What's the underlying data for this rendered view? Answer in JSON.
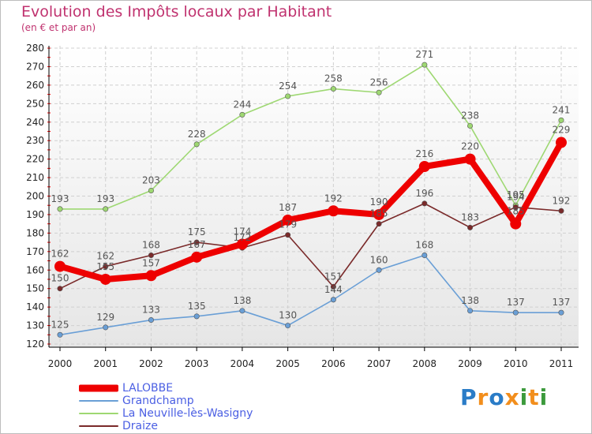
{
  "header": {
    "title": "Evolution des Impôts locaux par Habitant",
    "subtitle": "(en € et par an)"
  },
  "logo": {
    "text": "Proxiti",
    "letters": [
      "P",
      "r",
      "o",
      "x",
      "i",
      "t",
      "i"
    ],
    "colors": [
      "#2a7cc7",
      "#f28e1c",
      "#2a7cc7",
      "#f28e1c",
      "#3c9a3c",
      "#f28e1c",
      "#3c9a3c"
    ]
  },
  "colors": {
    "title": "#c0326f",
    "legend_text": "#4b5fe3",
    "grid": "#d0d0d0",
    "axis": "#000000",
    "tick_marks": "#ff0000"
  },
  "chart_data": {
    "type": "line",
    "title": "Evolution des Impôts locaux par Habitant",
    "subtitle": "(en € et par an)",
    "xlabel": "",
    "ylabel": "",
    "x": [
      "2000",
      "2001",
      "2002",
      "2003",
      "2004",
      "2005",
      "2006",
      "2007",
      "2008",
      "2009",
      "2010",
      "2011"
    ],
    "ylim": [
      120,
      280
    ],
    "yticks": [
      120,
      130,
      140,
      150,
      160,
      170,
      180,
      190,
      200,
      210,
      220,
      230,
      240,
      250,
      260,
      270,
      280
    ],
    "grid": true,
    "legend_position": "bottom-left",
    "series": [
      {
        "name": "LALOBBE",
        "color": "#ee0000",
        "width": 8,
        "marker": 7,
        "label_color": "#555555",
        "values": [
          162,
          155,
          157,
          167,
          174,
          187,
          192,
          190,
          216,
          220,
          185,
          229
        ],
        "labels": [
          "162",
          "155",
          "157",
          "167",
          "174",
          "187",
          "192",
          "190",
          "216",
          "220",
          "185",
          "229"
        ]
      },
      {
        "name": "Grandchamp",
        "color": "#6a9fd6",
        "width": 1.6,
        "marker": 3.2,
        "label_color": "#555555",
        "values": [
          125,
          129,
          133,
          135,
          138,
          130,
          144,
          160,
          168,
          138,
          137,
          137
        ],
        "labels": [
          "125",
          "129",
          "133",
          "135",
          "138",
          "130",
          "144",
          "160",
          "168",
          "138",
          "137",
          "137"
        ]
      },
      {
        "name": "La Neuville-lès-Wasigny",
        "color": "#9ed872",
        "width": 1.6,
        "marker": 3.2,
        "label_color": "#555555",
        "values": [
          193,
          193,
          203,
          228,
          244,
          254,
          258,
          256,
          271,
          238,
          195,
          241
        ],
        "labels": [
          "193",
          "193",
          "203",
          "228",
          "244",
          "254",
          "258",
          "256",
          "271",
          "238",
          "195",
          "241"
        ]
      },
      {
        "name": "Draize",
        "color": "#7a2a2a",
        "width": 1.6,
        "marker": 3.2,
        "label_color": "#555555",
        "values": [
          150,
          162,
          168,
          175,
          172,
          179,
          151,
          185,
          196,
          183,
          194,
          192
        ],
        "labels": [
          "150",
          "162",
          "168",
          "175",
          "172",
          "179",
          "151",
          "185",
          "196",
          "183",
          "194",
          "192"
        ]
      }
    ]
  }
}
